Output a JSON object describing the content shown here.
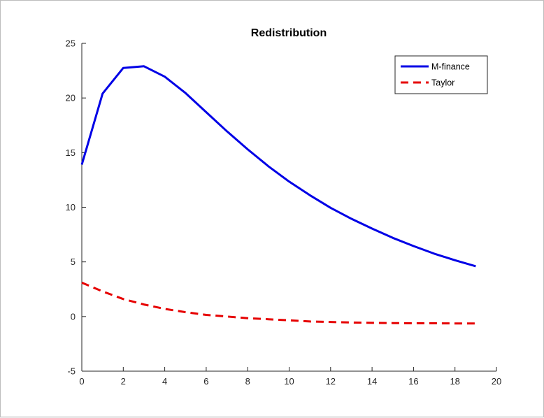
{
  "chart_data": {
    "type": "line",
    "title": "Redistribution",
    "xlabel": "",
    "ylabel": "",
    "xlim": [
      0,
      20
    ],
    "ylim": [
      -5,
      25
    ],
    "xticks": [
      0,
      2,
      4,
      6,
      8,
      10,
      12,
      14,
      16,
      18,
      20
    ],
    "yticks": [
      -5,
      0,
      5,
      10,
      15,
      20,
      25
    ],
    "grid": false,
    "legend_position": "top-right",
    "x": [
      0,
      1,
      2,
      3,
      4,
      5,
      6,
      7,
      8,
      9,
      10,
      11,
      12,
      13,
      14,
      15,
      16,
      17,
      18,
      19
    ],
    "series": [
      {
        "name": "M-finance",
        "color": "#0000e6",
        "style": "solid",
        "values": [
          13.9,
          20.4,
          22.75,
          22.9,
          21.95,
          20.45,
          18.7,
          16.95,
          15.3,
          13.75,
          12.35,
          11.1,
          9.95,
          8.95,
          8.05,
          7.2,
          6.45,
          5.75,
          5.15,
          4.6
        ]
      },
      {
        "name": "Taylor",
        "color": "#e60000",
        "style": "dashed",
        "values": [
          3.1,
          2.3,
          1.6,
          1.1,
          0.7,
          0.4,
          0.15,
          0.0,
          -0.15,
          -0.25,
          -0.35,
          -0.45,
          -0.5,
          -0.55,
          -0.58,
          -0.6,
          -0.62,
          -0.62,
          -0.63,
          -0.63
        ]
      }
    ]
  }
}
